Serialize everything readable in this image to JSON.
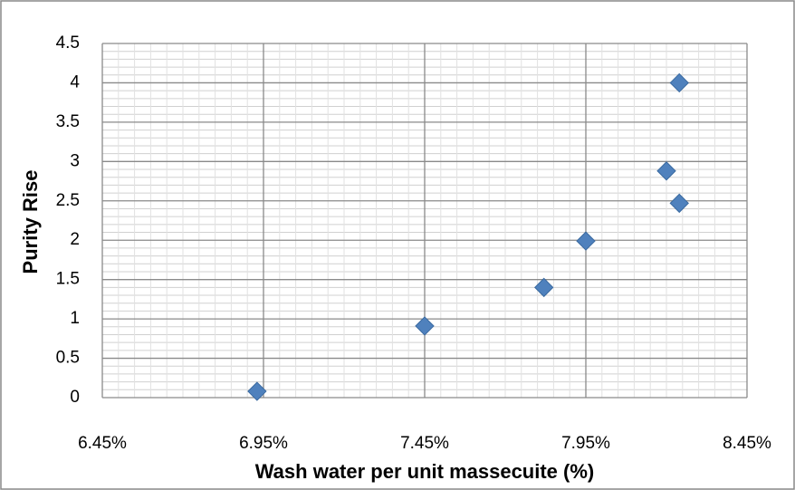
{
  "chart_data": {
    "type": "scatter",
    "xlabel": "Wash water per unit massecuite (%)",
    "ylabel": "Purity Rise",
    "x": [
      6.93,
      7.45,
      7.82,
      7.95,
      8.2,
      8.24,
      8.24
    ],
    "values": [
      0.08,
      0.91,
      1.4,
      1.99,
      2.88,
      4.0,
      2.47
    ],
    "color": "#4f81bd",
    "xlim": [
      6.45,
      8.45
    ],
    "xticks": [
      {
        "value": 6.45,
        "label": "6.45%"
      },
      {
        "value": 6.95,
        "label": "6.95%"
      },
      {
        "value": 7.45,
        "label": "7.45%"
      },
      {
        "value": 7.95,
        "label": "7.95%"
      },
      {
        "value": 8.45,
        "label": "8.45%"
      }
    ],
    "ylim": [
      0,
      4.5
    ],
    "yticks": [
      0,
      0.5,
      1,
      1.5,
      2,
      2.5,
      3,
      3.5,
      4,
      {
        "value": 4.5,
        "label": "4.5"
      }
    ],
    "grid": true
  }
}
